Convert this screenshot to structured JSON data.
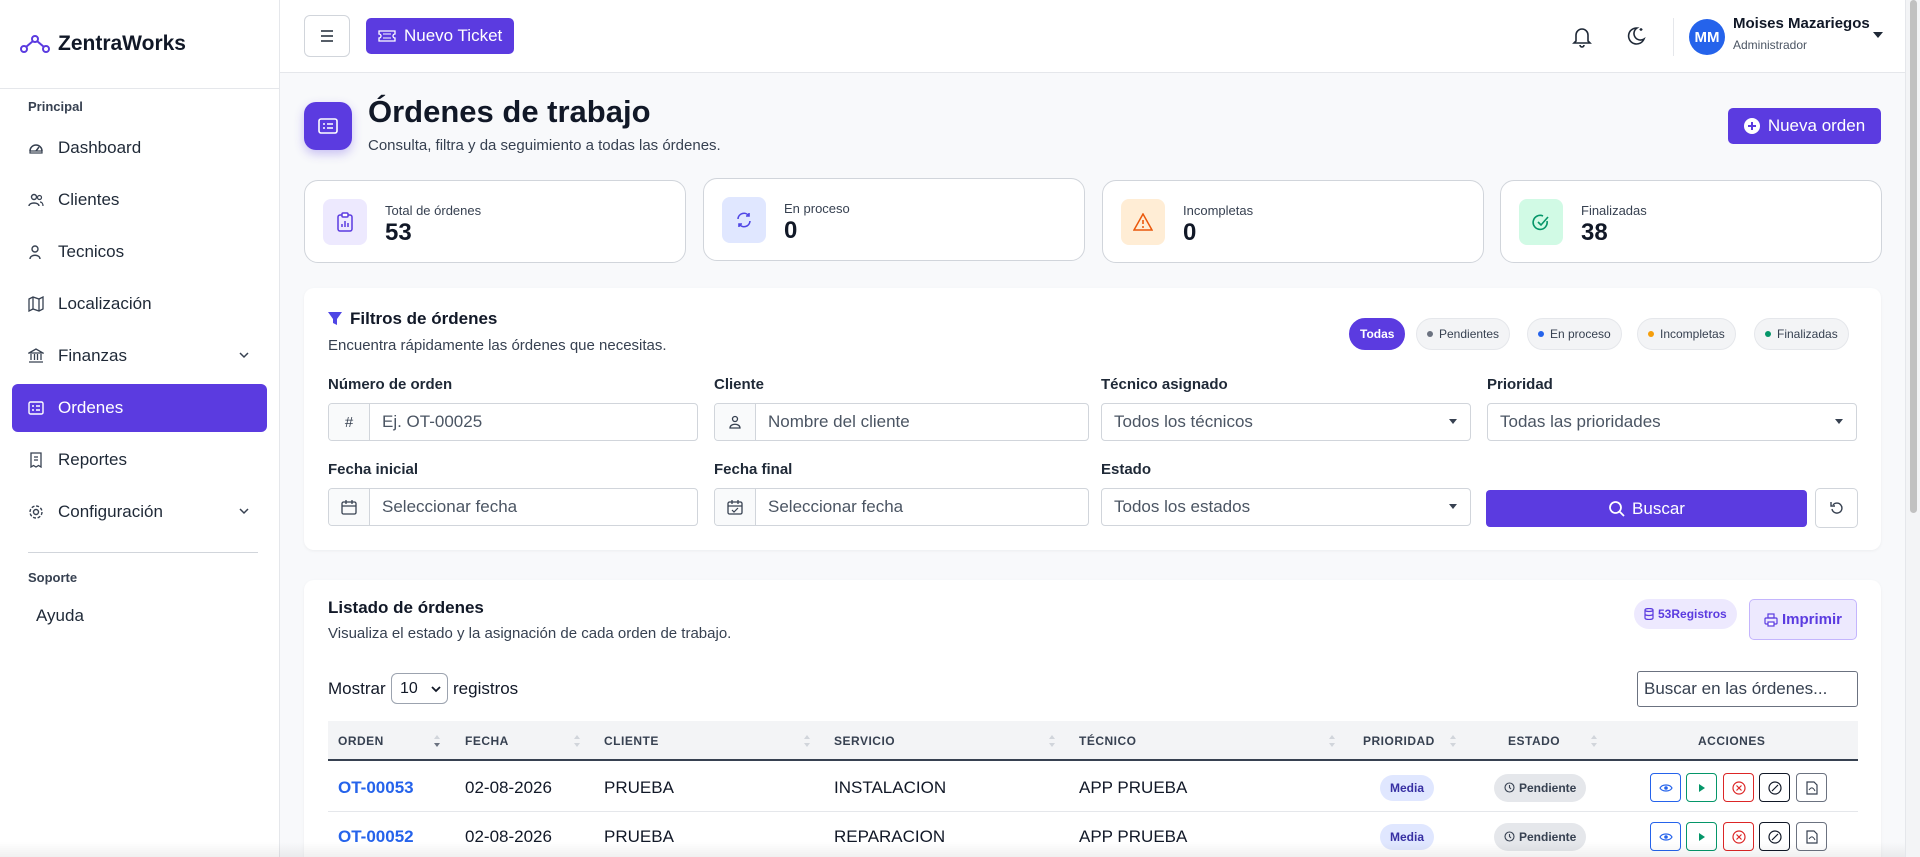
{
  "brand": {
    "name": "ZentraWorks"
  },
  "sidebar": {
    "section_principal": "Principal",
    "items": [
      {
        "label": "Dashboard",
        "icon": "gauge-icon"
      },
      {
        "label": "Clientes",
        "icon": "users-icon"
      },
      {
        "label": "Tecnicos",
        "icon": "user-icon"
      },
      {
        "label": "Localización",
        "icon": "map-icon"
      },
      {
        "label": "Finanzas",
        "icon": "bank-icon"
      },
      {
        "label": "Ordenes",
        "icon": "list-card-icon",
        "active": true
      },
      {
        "label": "Reportes",
        "icon": "receipt-icon"
      },
      {
        "label": "Configuración",
        "icon": "gear-icon"
      }
    ],
    "section_soporte": "Soporte",
    "help": "Ayuda"
  },
  "topbar": {
    "new_ticket": "Nuevo Ticket",
    "user_initials": "MM",
    "user_name": "Moises Mazariegos",
    "user_role": "Administrador"
  },
  "header": {
    "title": "Órdenes de trabajo",
    "subtitle": "Consulta, filtra y da seguimiento a todas las órdenes.",
    "new_order": "Nueva orden"
  },
  "stats": [
    {
      "label": "Total de órdenes",
      "value": "53"
    },
    {
      "label": "En proceso",
      "value": "0"
    },
    {
      "label": "Incompletas",
      "value": "0"
    },
    {
      "label": "Finalizadas",
      "value": "38"
    }
  ],
  "filters": {
    "title": "Filtros de órdenes",
    "subtitle": "Encuentra rápidamente las órdenes que necesitas.",
    "chips": [
      "Todas",
      "Pendientes",
      "En proceso",
      "Incompletas",
      "Finalizadas"
    ],
    "order_label": "Número de orden",
    "order_addon": "#",
    "order_placeholder": "Ej. OT-00025",
    "client_label": "Cliente",
    "client_placeholder": "Nombre del cliente",
    "tech_label": "Técnico asignado",
    "tech_value": "Todos los técnicos",
    "priority_label": "Prioridad",
    "priority_value": "Todas las prioridades",
    "start_label": "Fecha inicial",
    "start_placeholder": "Seleccionar fecha",
    "end_label": "Fecha final",
    "end_placeholder": "Seleccionar fecha",
    "state_label": "Estado",
    "state_value": "Todos los estados",
    "search_btn": "Buscar"
  },
  "list": {
    "title": "Listado de órdenes",
    "subtitle": "Visualiza el estado y la asignación de cada orden de trabajo.",
    "records_badge": "53Registros",
    "print": "Imprimir",
    "show_prefix": "Mostrar",
    "show_value": "10",
    "show_suffix": "registros",
    "search_placeholder": "Buscar en las órdenes...",
    "columns": [
      "ORDEN",
      "FECHA",
      "CLIENTE",
      "SERVICIO",
      "TÉCNICO",
      "PRIORIDAD",
      "ESTADO",
      "ACCIONES"
    ],
    "rows": [
      {
        "order": "OT-00053",
        "date": "02-08-2026",
        "client": "PRUEBA",
        "service": "INSTALACION",
        "tech": "APP PRUEBA",
        "priority": "Media",
        "status": "Pendiente"
      },
      {
        "order": "OT-00052",
        "date": "02-08-2026",
        "client": "PRUEBA",
        "service": "REPARACION",
        "tech": "APP PRUEBA",
        "priority": "Media",
        "status": "Pendiente"
      }
    ]
  },
  "colors": {
    "accent": "#5b3be0",
    "link": "#2563eb"
  }
}
